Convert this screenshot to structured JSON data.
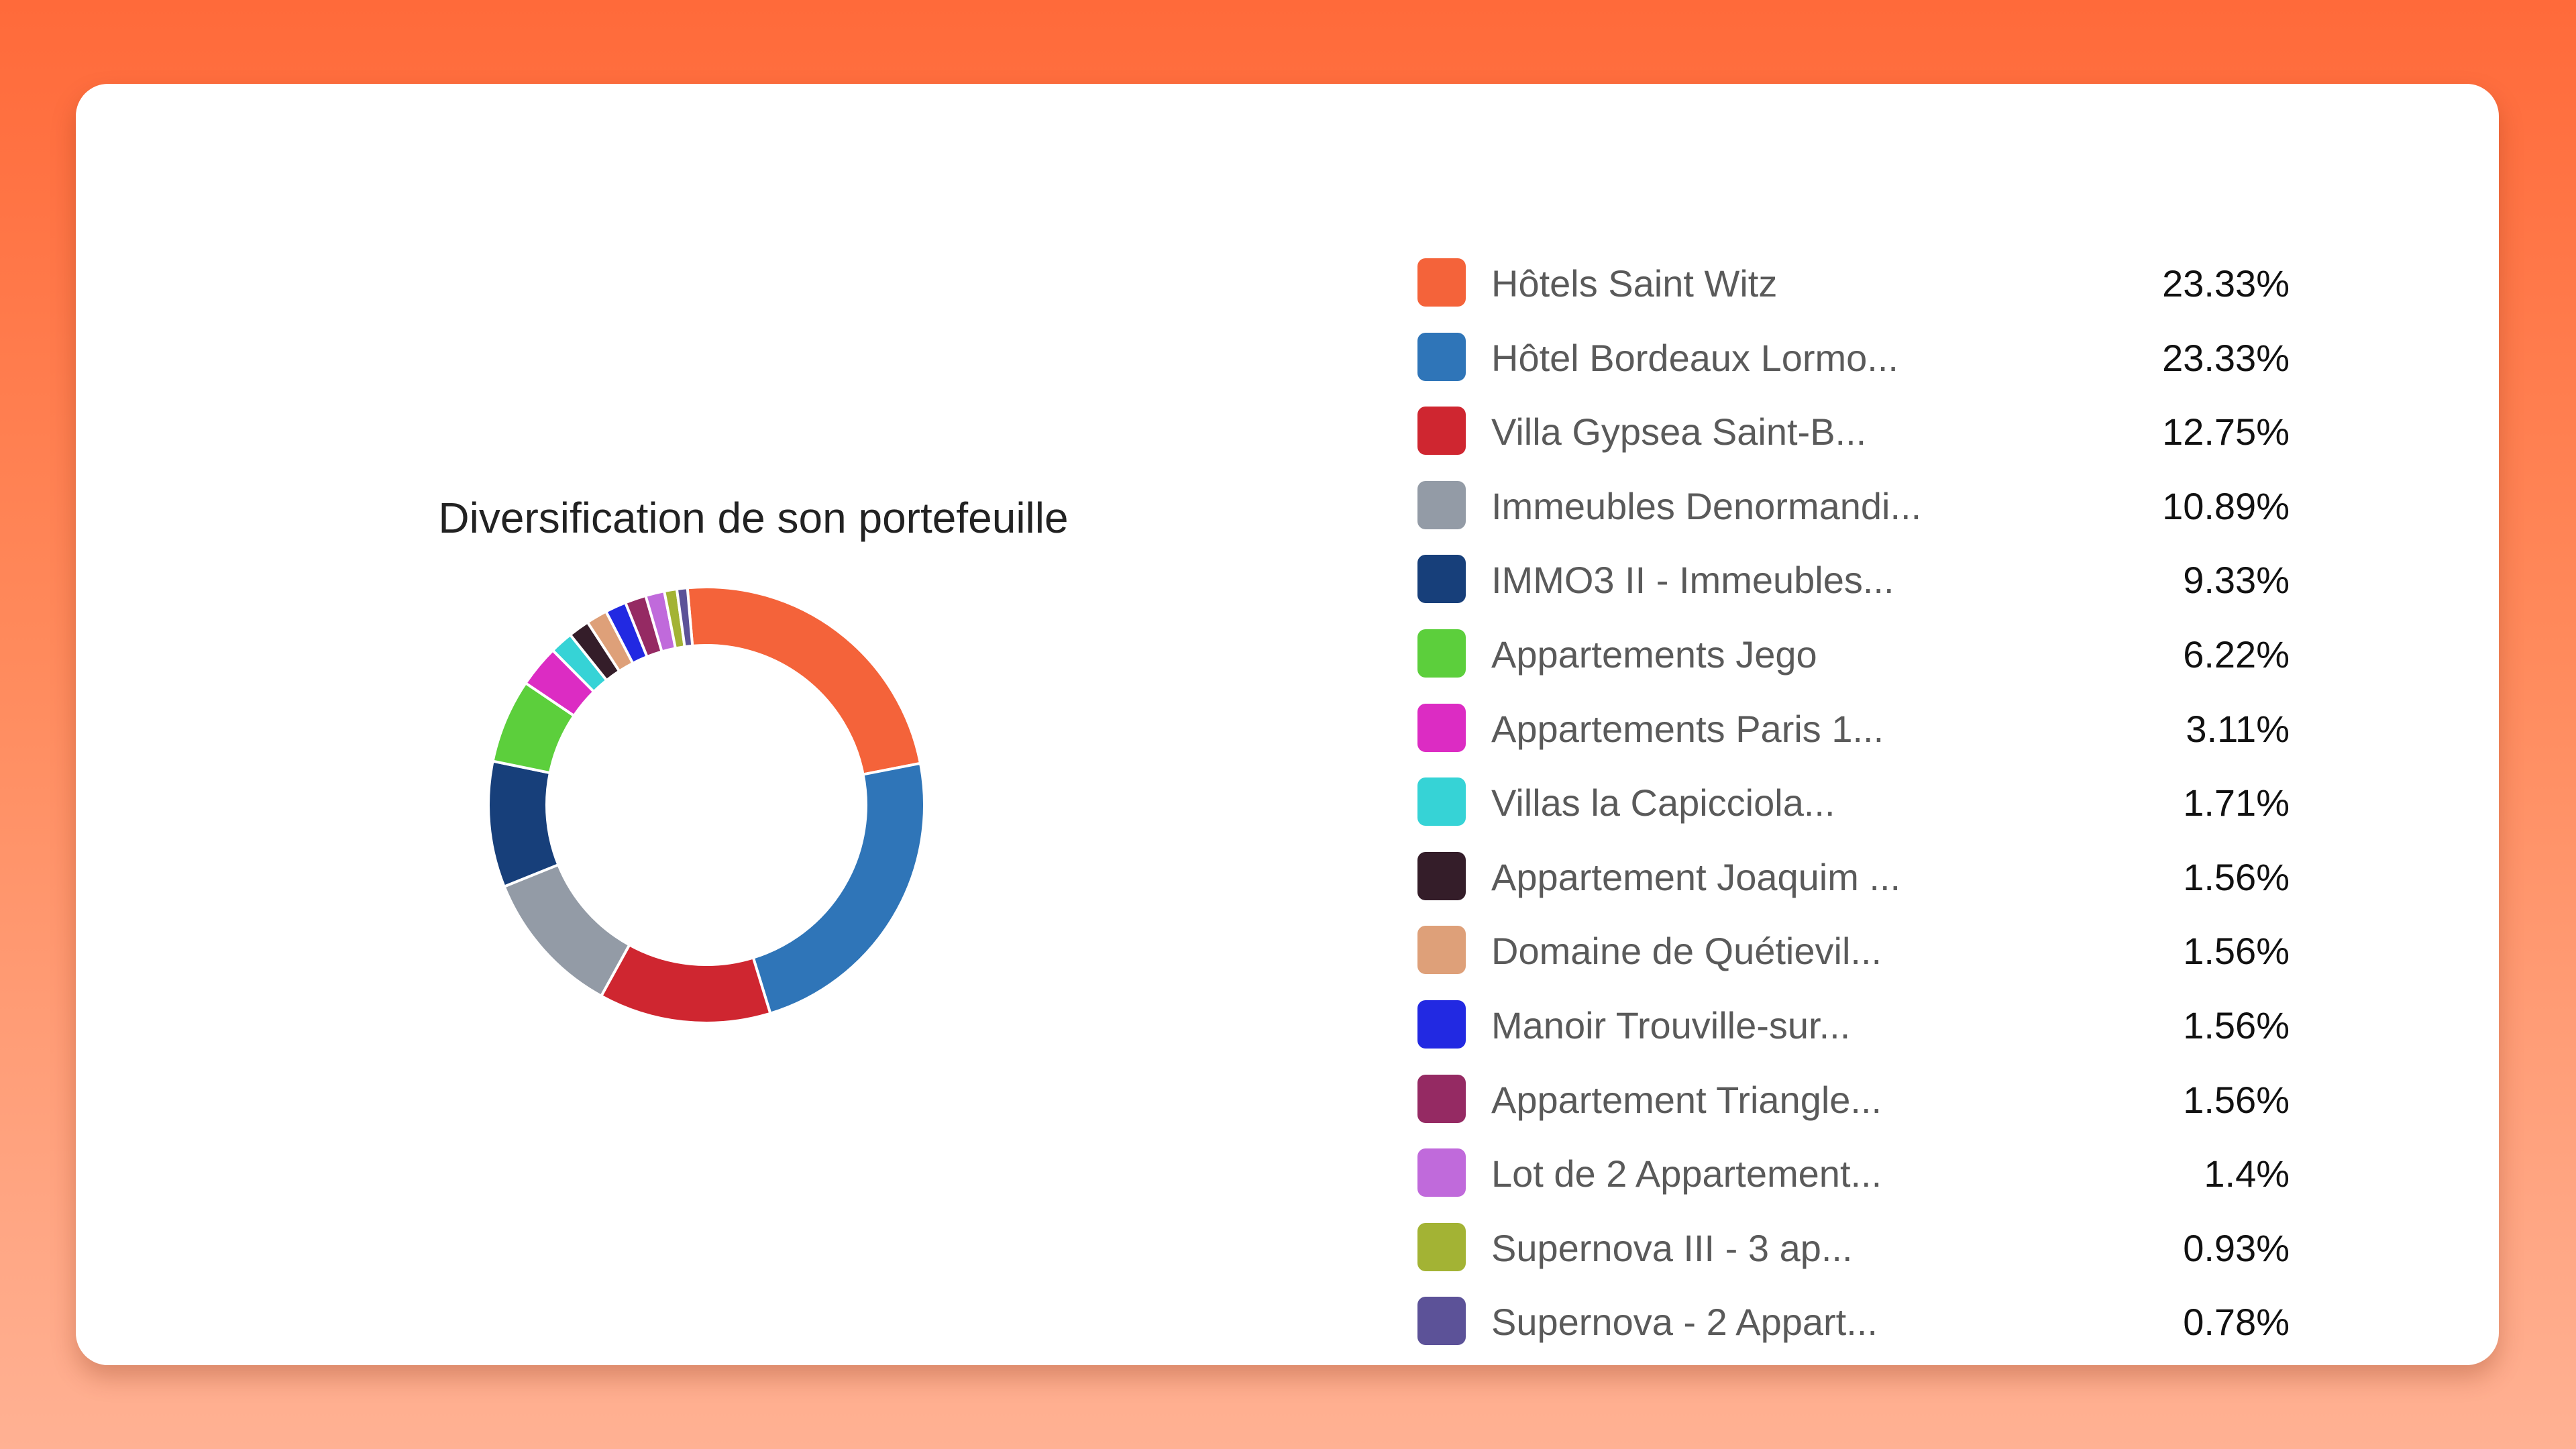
{
  "chart_data": {
    "type": "pie",
    "title": "Diversification de son portefeuille",
    "legend_position": "right",
    "series": [
      {
        "name": "Hôtels Saint Witz",
        "value_label": "23.33%",
        "value": 23.33,
        "color": "#f4633a"
      },
      {
        "name": "Hôtel Bordeaux Lormo...",
        "value_label": "23.33%",
        "value": 23.33,
        "color": "#2f75b8"
      },
      {
        "name": "Villa Gypsea Saint-B...",
        "value_label": "12.75%",
        "value": 12.75,
        "color": "#cf2630"
      },
      {
        "name": "Immeubles Denormandi...",
        "value_label": "10.89%",
        "value": 10.89,
        "color": "#939ba6"
      },
      {
        "name": "IMMO3 II - Immeubles...",
        "value_label": "9.33%",
        "value": 9.33,
        "color": "#173f7a"
      },
      {
        "name": "Appartements Jego",
        "value_label": "6.22%",
        "value": 6.22,
        "color": "#5ccf3c"
      },
      {
        "name": "Appartements Paris 1...",
        "value_label": "3.11%",
        "value": 3.11,
        "color": "#dc2cc3"
      },
      {
        "name": "Villas la Capicciola...",
        "value_label": "1.71%",
        "value": 1.71,
        "color": "#36d3d6"
      },
      {
        "name": "Appartement Joaquim ...",
        "value_label": "1.56%",
        "value": 1.56,
        "color": "#341d29"
      },
      {
        "name": "Domaine de Quétievil...",
        "value_label": "1.56%",
        "value": 1.56,
        "color": "#dea079"
      },
      {
        "name": "Manoir Trouville-sur...",
        "value_label": "1.56%",
        "value": 1.56,
        "color": "#2229e2"
      },
      {
        "name": "Appartement Triangle...",
        "value_label": "1.56%",
        "value": 1.56,
        "color": "#952a63"
      },
      {
        "name": "Lot de 2 Appartement...",
        "value_label": "1.4%",
        "value": 1.4,
        "color": "#c06adb"
      },
      {
        "name": "Supernova III - 3 ap...",
        "value_label": "0.93%",
        "value": 0.93,
        "color": "#a3b334"
      },
      {
        "name": "Supernova - 2 Appart...",
        "value_label": "0.78%",
        "value": 0.78,
        "color": "#5c5298"
      }
    ]
  }
}
